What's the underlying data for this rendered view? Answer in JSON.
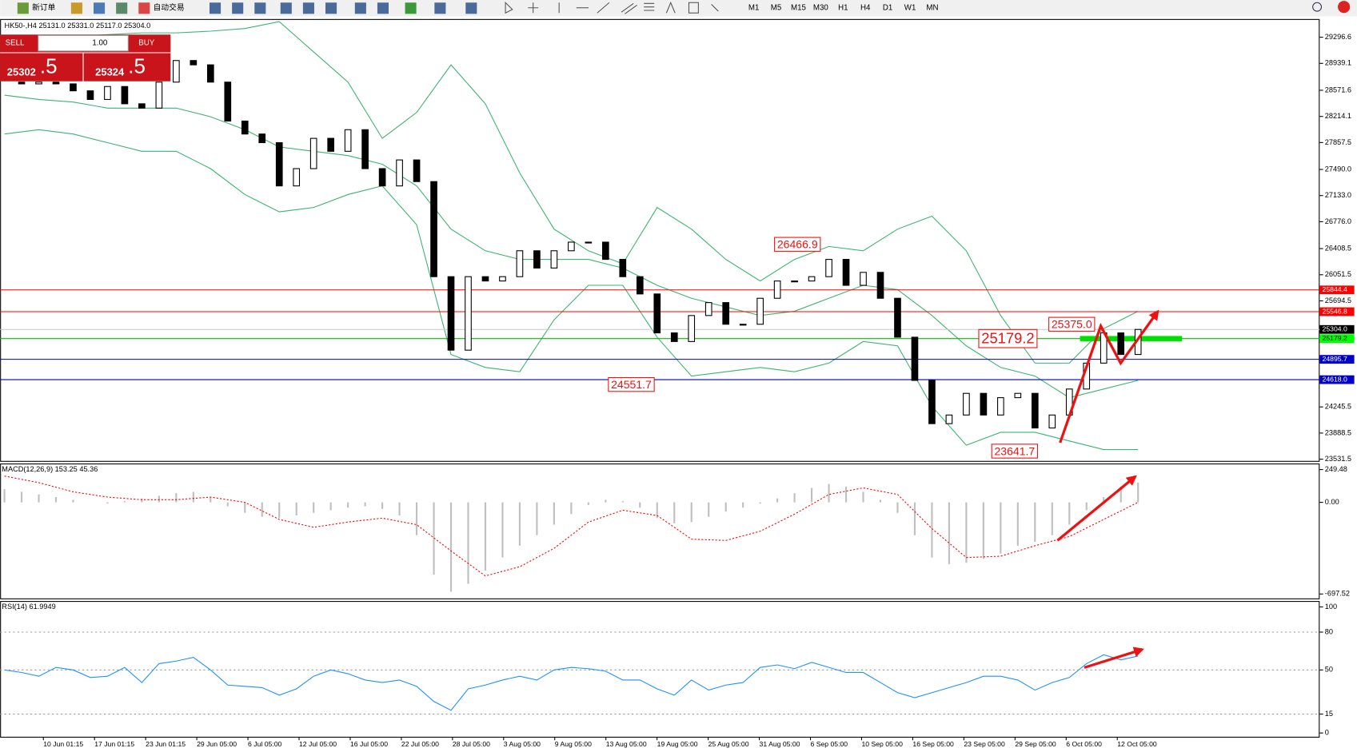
{
  "toolbar": {
    "new_order": "新订单",
    "auto_trading": "自动交易",
    "timeframes": [
      "M1",
      "M5",
      "M15",
      "M30",
      "H1",
      "H4",
      "D1",
      "W1",
      "MN"
    ]
  },
  "trade_panel": {
    "sell": "SELL",
    "lot": "1.00",
    "buy": "BUY",
    "sell_price": "25302",
    "sell_fraction": ".5",
    "buy_price": "25324",
    "buy_fraction": ".5"
  },
  "time_axis_labels": [
    "10 Jun 01:15",
    "17 Jun 01:15",
    "23 Jun 01:15",
    "29 Jun 05:00",
    "6 Jul 05:00",
    "12 Jul 05:00",
    "16 Jul 05:00",
    "22 Jul 05:00",
    "28 Jul 05:00",
    "3 Aug 05:00",
    "9 Aug 05:00",
    "13 Aug 05:00",
    "19 Aug 05:00",
    "25 Aug 05:00",
    "31 Aug 05:00",
    "6 Sep 05:00",
    "10 Sep 05:00",
    "16 Sep 05:00",
    "23 Sep 05:00",
    "29 Sep 05:00",
    "6 Oct 05:00",
    "12 Oct 05:00"
  ],
  "chart_data": [
    {
      "type": "candlestick",
      "title": "HK50-,H4  25131.0 25331.0 25117.0 25304.0",
      "close": [
        28683,
        28659,
        28683,
        28659,
        28564,
        28446,
        28623,
        28387,
        28328,
        28683,
        28978,
        28919,
        28683,
        28151,
        27974,
        27856,
        27265,
        27501,
        27915,
        27738,
        28033,
        27501,
        27265,
        27620,
        27324,
        26025,
        25021,
        26025,
        25966,
        26025,
        26379,
        26143,
        26379,
        26497,
        26497,
        26261,
        26025,
        25789,
        25257,
        25139,
        25494,
        25671,
        25375,
        25375,
        25730,
        25966,
        25966,
        26025,
        26261,
        25907,
        26084,
        25730,
        25198,
        24608,
        24017,
        24135,
        24431,
        24135,
        24372,
        24431,
        23958,
        24135,
        24490,
        24844,
        25257,
        24962,
        25304
      ],
      "bollinger": {
        "color": "#3cb371",
        "upper": [
          29214,
          29273,
          29308,
          29332,
          29356,
          29356,
          29379,
          29415,
          29509,
          29096,
          28683,
          27915,
          28269,
          28919,
          28387,
          27442,
          26675,
          26379,
          26202,
          26970,
          26675,
          26261,
          25966,
          26261,
          26438,
          26379,
          26675,
          26852,
          26379,
          25494,
          24844,
          24844,
          25316,
          25552
        ],
        "middle": [
          28505,
          28446,
          28411,
          28328,
          28328,
          28328,
          28210,
          28033,
          27797,
          27738,
          27679,
          27561,
          27265,
          26675,
          26379,
          26261,
          26261,
          26261,
          26143,
          25907,
          25730,
          25612,
          25494,
          25553,
          25730,
          25907,
          25848,
          25494,
          25080,
          24785,
          24667,
          24372,
          24490,
          24608
        ],
        "lower": [
          27974,
          28033,
          27974,
          27856,
          27738,
          27738,
          27501,
          27147,
          26911,
          26970,
          27147,
          27265,
          26734,
          24962,
          24785,
          24726,
          25435,
          25907,
          25907,
          25198,
          24667,
          24726,
          24785,
          24726,
          24844,
          25139,
          25080,
          24254,
          23722,
          23899,
          23899,
          23780,
          23663,
          23663
        ]
      },
      "ylim": [
        23508,
        29545
      ],
      "yticks": [
        29296.6,
        28939.1,
        28571.6,
        28214.1,
        27857.5,
        {
          "value": 27490,
          "label": "27490.0"
        },
        {
          "value": 27133,
          "label": "27133.0"
        },
        {
          "value": 26776,
          "label": "26776.0"
        },
        26408.5,
        26051.5,
        25694.5,
        24245.5,
        23888.5,
        23531.5
      ],
      "levels": [
        {
          "value": 25844.4,
          "color": "#ff0000",
          "tag_color": "#ff0000"
        },
        {
          "value": 25546.8,
          "color": "#ff0000",
          "tag_color": "#ff0000"
        },
        {
          "value": 25304,
          "label": "25304.0",
          "color": "#c8c8c8",
          "tag_color": "#000000"
        },
        {
          "value": 25179.2,
          "color": "#00c000",
          "tag_color": "#00ff00"
        },
        {
          "value": 24895.7,
          "color": "#0000c8",
          "tag_color": "#0000c8"
        },
        {
          "value": 24618,
          "label": "24618.0",
          "color": "#0000c8",
          "tag_color": "#0000c8"
        }
      ],
      "annotations": [
        26466.9,
        24551.7,
        25179.2,
        {
          "value": 25375,
          "label": "25375.0"
        },
        23641.7
      ]
    },
    {
      "type": "macd",
      "title": "MACD(12,26,9) 153.25 45.36",
      "histogram": [
        100,
        80,
        60,
        40,
        20,
        0,
        -10,
        10,
        30,
        50,
        70,
        80,
        40,
        -30,
        -80,
        -110,
        -120,
        -100,
        -80,
        -60,
        -40,
        -30,
        -50,
        -100,
        -250,
        -550,
        -680,
        -620,
        -520,
        -420,
        -330,
        -250,
        -170,
        -90,
        -20,
        20,
        10,
        -40,
        -120,
        -160,
        -150,
        -110,
        -70,
        -40,
        -10,
        30,
        70,
        110,
        140,
        120,
        80,
        20,
        -80,
        -250,
        -420,
        -470,
        -460,
        -430,
        -390,
        -330,
        -300,
        -250,
        -170,
        -60,
        40,
        120,
        150
      ],
      "signal": [
        200,
        150,
        80,
        40,
        20,
        20,
        40,
        0,
        -130,
        -190,
        -150,
        -120,
        -170,
        -370,
        -560,
        -490,
        -350,
        -150,
        -60,
        -100,
        -280,
        -290,
        -220,
        -90,
        60,
        110,
        60,
        -200,
        -420,
        -410,
        -330,
        -260,
        -130,
        0
      ],
      "histogram_color": "#c0c0c0",
      "signal_color": "#ff0000",
      "ylim": [
        -731,
        289
      ],
      "yticks": [
        249.48,
        {
          "value": 0,
          "label": "0.00"
        },
        -697.52
      ]
    },
    {
      "type": "line",
      "title": "RSI(14) 61.9949",
      "values": [
        50,
        48,
        45,
        52,
        50,
        44,
        45,
        52,
        40,
        55,
        57,
        60,
        50,
        38,
        37,
        36,
        30,
        35,
        45,
        50,
        47,
        42,
        40,
        42,
        37,
        25,
        18,
        35,
        38,
        42,
        45,
        42,
        50,
        52,
        51,
        49,
        42,
        42,
        35,
        30,
        42,
        34,
        38,
        40,
        52,
        54,
        51,
        56,
        52,
        48,
        48,
        40,
        32,
        28,
        32,
        36,
        40,
        45,
        45,
        42,
        34,
        40,
        44,
        55,
        62,
        58,
        61
      ],
      "color": "#1e90ff",
      "ylim": [
        -3,
        104
      ],
      "yticks": [
        100,
        80,
        50,
        15,
        0
      ],
      "levels": [
        80,
        50,
        15
      ]
    }
  ]
}
